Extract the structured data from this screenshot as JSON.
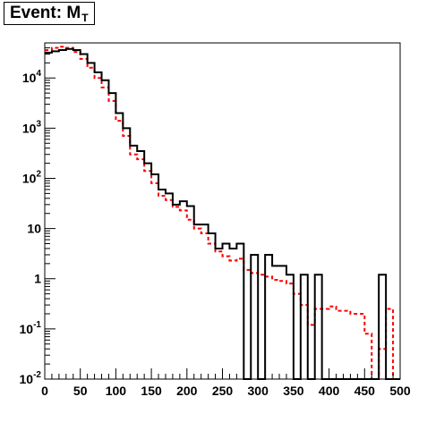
{
  "chart_data": {
    "type": "line",
    "title": "Event: M",
    "title_subscript": "T",
    "xlabel": "",
    "ylabel": "",
    "xlim": [
      0,
      500
    ],
    "ylim": [
      0.01,
      50000
    ],
    "y_scale": "log",
    "bin_width": 10,
    "grid": false,
    "x_ticks": [
      "0",
      "50",
      "100",
      "150",
      "200",
      "250",
      "300",
      "350",
      "400",
      "450",
      "500"
    ],
    "y_ticks": [
      {
        "value": 0.01,
        "base": "10",
        "exp": "-2"
      },
      {
        "value": 0.1,
        "base": "10",
        "exp": "-1"
      },
      {
        "value": 1,
        "base": "1",
        "exp": ""
      },
      {
        "value": 10,
        "base": "10",
        "exp": ""
      },
      {
        "value": 100,
        "base": "10",
        "exp": "2"
      },
      {
        "value": 1000,
        "base": "10",
        "exp": "3"
      },
      {
        "value": 10000,
        "base": "10",
        "exp": "4"
      }
    ],
    "series": [
      {
        "color": "#000000",
        "style": "solid",
        "values": [
          32000,
          34000,
          36000,
          38000,
          36000,
          30000,
          20000,
          13000,
          9000,
          5000,
          2000,
          1000,
          450,
          350,
          200,
          120,
          60,
          50,
          30,
          35,
          28,
          12,
          12,
          8,
          4,
          5,
          4,
          5,
          0,
          3,
          0,
          3,
          1.8,
          1.8,
          1.2,
          0,
          1.2,
          0,
          1.2,
          0,
          0,
          0,
          0,
          0,
          0,
          0,
          0,
          1.2,
          0,
          0
        ]
      },
      {
        "color": "#ff0000",
        "style": "dashed",
        "values": [
          36000,
          40000,
          42000,
          40000,
          33000,
          24000,
          16000,
          10000,
          6500,
          3500,
          1400,
          700,
          300,
          240,
          140,
          80,
          45,
          37,
          27,
          23,
          15,
          10,
          8,
          5,
          3.5,
          2.8,
          2.3,
          2.5,
          1.5,
          1.3,
          1.2,
          1.1,
          0.95,
          0.9,
          0.8,
          0.5,
          0.3,
          0.12,
          0.25,
          0.25,
          0.28,
          0.23,
          0.23,
          0.2,
          0.2,
          0.08,
          0.008,
          0.04,
          0.25,
          0.008
        ]
      }
    ]
  }
}
